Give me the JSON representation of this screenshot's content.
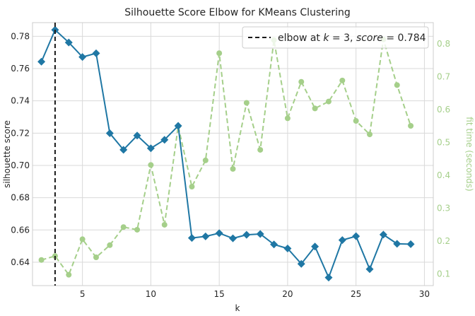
{
  "chart_data": {
    "type": "line",
    "title": "Silhouette Score Elbow for KMeans Clustering",
    "xlabel": "k",
    "ylabel": "silhouette score",
    "y2label": "fit time (seconds)",
    "xlim": [
      1.35,
      30.65
    ],
    "ylim": [
      0.6255,
      0.7885
    ],
    "y2lim": [
      0.065,
      0.865
    ],
    "x_ticks": [
      5,
      10,
      15,
      20,
      25,
      30
    ],
    "y_ticks": [
      0.64,
      0.66,
      0.68,
      0.7,
      0.72,
      0.74,
      0.76,
      0.78
    ],
    "y_tick_labels": [
      "0.64",
      "0.66",
      "0.68",
      "0.70",
      "0.72",
      "0.74",
      "0.76",
      "0.78"
    ],
    "y2_ticks": [
      0.1,
      0.2,
      0.3,
      0.4,
      0.5,
      0.6,
      0.7,
      0.8
    ],
    "grid": true,
    "x": [
      2,
      3,
      4,
      5,
      6,
      7,
      8,
      9,
      10,
      11,
      12,
      13,
      14,
      15,
      16,
      17,
      18,
      19,
      20,
      21,
      22,
      23,
      24,
      25,
      26,
      27,
      28,
      29
    ],
    "series": [
      {
        "axis": "left",
        "color": "#1f77a4",
        "values": [
          0.7643,
          0.784,
          0.7762,
          0.7672,
          0.7695,
          0.7199,
          0.7097,
          0.7185,
          0.7106,
          0.7159,
          0.7245,
          0.655,
          0.656,
          0.658,
          0.6548,
          0.657,
          0.6575,
          0.651,
          0.6485,
          0.639,
          0.6497,
          0.6305,
          0.6537,
          0.6561,
          0.6357,
          0.6571,
          0.6514,
          0.6512
        ]
      },
      {
        "axis": "right",
        "color": "#a5cf8a",
        "values": [
          0.143,
          0.155,
          0.098,
          0.206,
          0.151,
          0.188,
          0.243,
          0.235,
          0.432,
          0.25,
          0.55,
          0.366,
          0.446,
          0.772,
          0.42,
          0.621,
          0.478,
          0.812,
          0.574,
          0.685,
          0.604,
          0.625,
          0.689,
          0.566,
          0.525,
          0.814,
          0.675,
          0.551
        ]
      }
    ],
    "elbow": {
      "k": 3,
      "score": 0.784,
      "legend_label": "elbow at $k=3$, $score=0.784$",
      "legend_parts": {
        "prefix": "elbow at ",
        "k_var": "k",
        "k_eq": " = 3, ",
        "score_var": "score",
        "score_eq": " = 0.784"
      },
      "legend_position": "top-right"
    },
    "colors": {
      "primary": "#1f77a4",
      "secondary": "#a5cf8a",
      "elbow_line": "#1a1a1a",
      "grid": "#d9d9d9",
      "tick_left": "#262626",
      "tick_right": "#a5cf8a"
    }
  }
}
